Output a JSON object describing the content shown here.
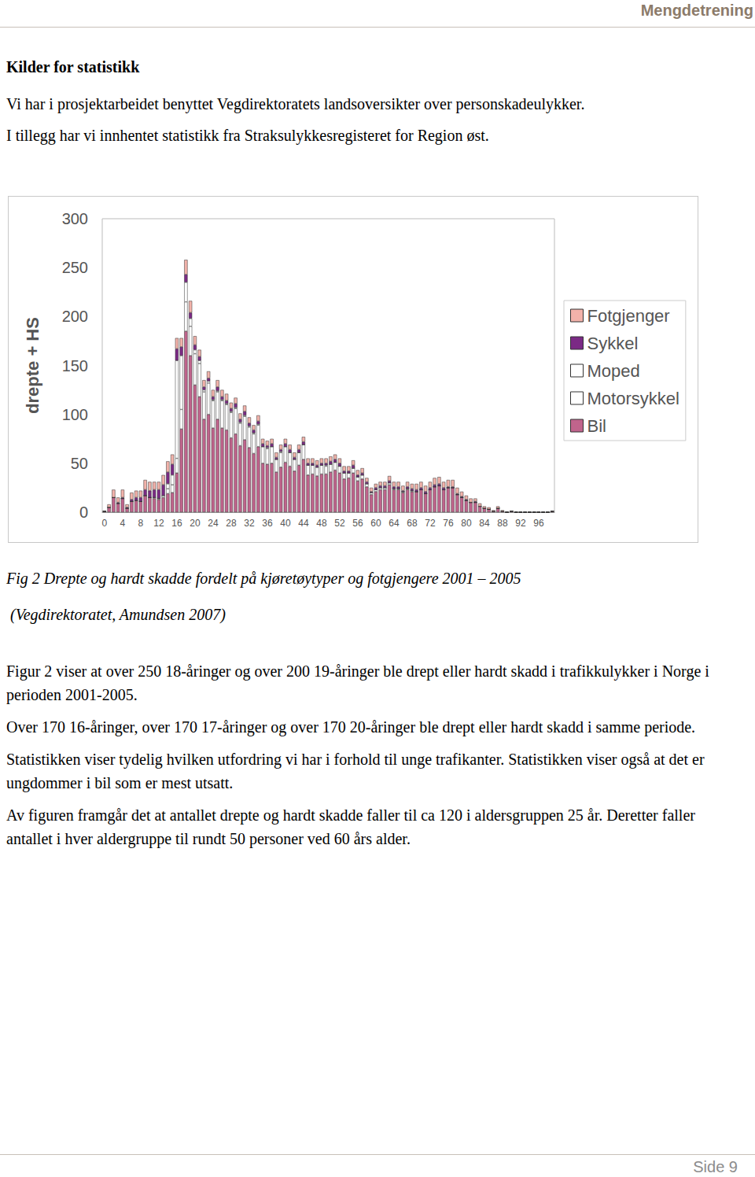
{
  "header": {
    "title": "Mengdetrening"
  },
  "heading": "Kilder for statistikk",
  "intro": [
    "Vi har i prosjektarbeidet benyttet Vegdirektoratets landsoversikter over personskadeulykker.",
    "I tillegg har vi innhentet statistikk fra Straksulykkesregisteret for Region øst."
  ],
  "chart_data": {
    "type": "bar",
    "stacked": true,
    "grid": false,
    "legend": "right",
    "y_label": "drepte + HS",
    "ylim": [
      0,
      300
    ],
    "yticks": [
      0,
      50,
      100,
      150,
      200,
      250,
      300
    ],
    "categories": [
      "0",
      null,
      null,
      null,
      "4",
      null,
      null,
      null,
      "8",
      null,
      null,
      null,
      "12",
      null,
      null,
      null,
      "16",
      null,
      null,
      null,
      "20",
      null,
      null,
      null,
      "24",
      null,
      null,
      null,
      "28",
      null,
      null,
      null,
      "32",
      null,
      null,
      null,
      "36",
      null,
      null,
      null,
      "40",
      null,
      null,
      null,
      "44",
      null,
      null,
      null,
      "48",
      null,
      null,
      null,
      "52",
      null,
      null,
      null,
      "56",
      null,
      null,
      null,
      "60",
      null,
      null,
      null,
      "64",
      null,
      null,
      null,
      "68",
      null,
      null,
      null,
      "72",
      null,
      null,
      null,
      "76",
      null,
      null,
      null,
      "80",
      null,
      null,
      null,
      "84",
      null,
      null,
      null,
      "88",
      null,
      null,
      null,
      "92",
      null,
      null,
      null,
      "96",
      null,
      null,
      null
    ],
    "series": [
      {
        "name": "Bil",
        "color": "#c0648c",
        "values": [
          1,
          5,
          15,
          9,
          14,
          4,
          11,
          12,
          11,
          17,
          15,
          14,
          13,
          15,
          19,
          20,
          40,
          85,
          185,
          160,
          130,
          118,
          95,
          100,
          86,
          95,
          86,
          84,
          76,
          80,
          68,
          74,
          66,
          60,
          67,
          50,
          49,
          50,
          41,
          46,
          51,
          47,
          42,
          48,
          54,
          38,
          39,
          37,
          39,
          39,
          41,
          43,
          40,
          34,
          35,
          40,
          32,
          34,
          26,
          18,
          21,
          23,
          23,
          28,
          23,
          23,
          20,
          23,
          21,
          21,
          23,
          19,
          23,
          26,
          27,
          23,
          25,
          25,
          18,
          15,
          12,
          10,
          10,
          6,
          4,
          3,
          1,
          4,
          1,
          0,
          1,
          0,
          0,
          0,
          0,
          0,
          0,
          0,
          0,
          1
        ]
      },
      {
        "name": "Motorsykkel",
        "color": "#ffffff",
        "values": [
          0,
          0,
          0,
          0,
          0,
          0,
          0,
          0,
          0,
          0,
          0,
          1,
          1,
          2,
          5,
          8,
          15,
          20,
          30,
          30,
          32,
          34,
          28,
          32,
          28,
          28,
          28,
          26,
          26,
          26,
          23,
          24,
          21,
          20,
          22,
          17,
          16,
          17,
          13,
          15,
          16,
          14,
          12,
          13,
          15,
          10,
          9,
          9,
          9,
          8,
          8,
          8,
          7,
          6,
          5,
          5,
          4,
          4,
          3,
          2,
          2,
          2,
          2,
          2,
          1,
          1,
          1,
          1,
          1,
          0,
          0,
          0,
          0,
          0,
          0,
          0,
          0,
          0,
          0,
          0,
          0,
          0,
          0,
          0,
          0,
          0,
          0,
          0,
          0,
          0,
          0,
          0,
          0,
          0,
          0,
          0,
          0,
          0,
          0,
          0
        ]
      },
      {
        "name": "Moped",
        "color": "#ffffff",
        "values": [
          0,
          0,
          0,
          0,
          0,
          0,
          0,
          0,
          0,
          0,
          0,
          0,
          0,
          0,
          5,
          10,
          100,
          55,
          20,
          8,
          4,
          3,
          2,
          2,
          1,
          1,
          1,
          1,
          1,
          1,
          1,
          1,
          1,
          1,
          1,
          0,
          1,
          0,
          0,
          1,
          0,
          0,
          0,
          0,
          0,
          0,
          0,
          0,
          0,
          1,
          0,
          0,
          0,
          0,
          0,
          0,
          0,
          0,
          0,
          0,
          0,
          0,
          0,
          0,
          0,
          0,
          0,
          0,
          0,
          0,
          0,
          0,
          0,
          0,
          0,
          0,
          0,
          0,
          0,
          0,
          0,
          0,
          0,
          0,
          0,
          0,
          0,
          0,
          0,
          0,
          0,
          0,
          0,
          0,
          0,
          0,
          0,
          0,
          0,
          0
        ]
      },
      {
        "name": "Sykkel",
        "color": "#7b2a85",
        "values": [
          0,
          0,
          0,
          1,
          1,
          1,
          2,
          3,
          4,
          6,
          7,
          8,
          9,
          11,
          12,
          11,
          12,
          9,
          8,
          6,
          5,
          4,
          3,
          3,
          3,
          4,
          3,
          3,
          3,
          4,
          3,
          4,
          3,
          3,
          3,
          3,
          2,
          3,
          2,
          2,
          3,
          3,
          2,
          3,
          3,
          2,
          2,
          2,
          2,
          2,
          3,
          3,
          3,
          2,
          2,
          3,
          2,
          2,
          2,
          1,
          2,
          2,
          2,
          2,
          2,
          2,
          1,
          2,
          2,
          2,
          2,
          2,
          2,
          2,
          2,
          2,
          1,
          1,
          1,
          1,
          1,
          0,
          1,
          0,
          0,
          0,
          0,
          0,
          0,
          0,
          0,
          0,
          0,
          0,
          0,
          0,
          0,
          0,
          0,
          0
        ]
      },
      {
        "name": "Fotgjenger",
        "color": "#f2b2aa",
        "values": [
          0,
          3,
          8,
          5,
          8,
          3,
          7,
          7,
          7,
          10,
          9,
          8,
          8,
          10,
          11,
          10,
          11,
          9,
          15,
          12,
          9,
          7,
          7,
          7,
          7,
          7,
          7,
          7,
          6,
          6,
          6,
          6,
          6,
          5,
          6,
          5,
          5,
          5,
          5,
          5,
          5,
          5,
          5,
          5,
          5,
          5,
          5,
          5,
          5,
          5,
          5,
          5,
          5,
          5,
          5,
          5,
          5,
          5,
          4,
          4,
          4,
          4,
          4,
          5,
          5,
          5,
          5,
          5,
          5,
          6,
          6,
          6,
          6,
          7,
          7,
          6,
          7,
          7,
          6,
          5,
          4,
          4,
          3,
          3,
          2,
          2,
          1,
          2,
          1,
          0,
          0,
          0,
          0,
          0,
          0,
          0,
          0,
          0,
          0,
          0
        ]
      }
    ]
  },
  "caption": [
    "Fig 2 Drepte og hardt skadde fordelt på kjøretøytyper og fotgjengere 2001 – 2005",
    " (Vegdirektoratet, Amundsen 2007)"
  ],
  "paragraphs": [
    "Figur 2 viser at over 250 18-åringer og over 200 19-åringer ble drept eller hardt skadd i trafikkulykker i Norge i perioden 2001-2005.",
    "Over 170 16-åringer, over 170 17-åringer og over 170 20-åringer ble drept eller hardt skadd i samme periode.",
    "Statistikken viser tydelig hvilken utfordring vi har i forhold til unge trafikanter. Statistikken viser også at det er ungdommer i bil som er mest utsatt.",
    "Av figuren framgår det at antallet drepte og hardt skadde faller til ca 120 i aldersgruppen 25 år. Deretter faller antallet i hver aldergruppe til rundt 50 personer ved 60 års alder."
  ],
  "footer": {
    "page": "Side 9"
  }
}
